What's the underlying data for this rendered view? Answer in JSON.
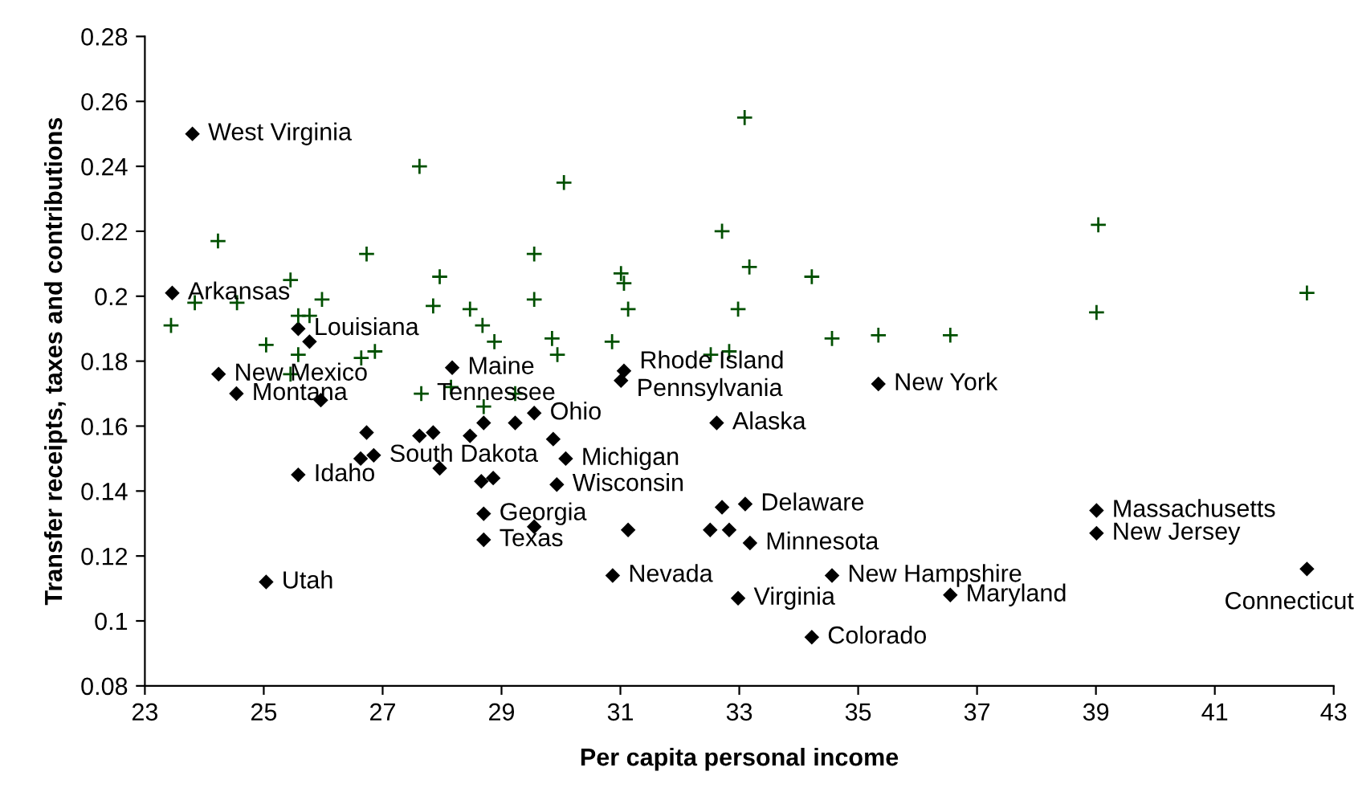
{
  "chart_data": {
    "type": "scatter",
    "xlabel": "Per capita personal income",
    "ylabel": "Transfer receipts, taxes and contributions",
    "xlim": [
      23,
      43
    ],
    "xticks": [
      23,
      25,
      27,
      29,
      31,
      33,
      35,
      37,
      39,
      41,
      43
    ],
    "ylim": [
      0.08,
      0.28
    ],
    "yticks": [
      0.08,
      0.1,
      0.12,
      0.14,
      0.16,
      0.18,
      0.2,
      0.22,
      0.24,
      0.26,
      0.28
    ],
    "grid": false,
    "legend": false,
    "series": [
      {
        "marker": "diamond",
        "color": "#000000",
        "x": [
          23.8,
          23.46,
          25.58,
          25.77,
          24.24,
          24.54,
          25.96,
          28.17,
          26.73,
          27.62,
          27.85,
          28.47,
          28.7,
          29.23,
          26.63,
          26.85,
          27.96,
          25.58,
          25.04,
          28.66,
          28.86,
          28.7,
          28.7,
          29.55,
          29.55,
          29.87,
          30.08,
          29.93,
          31.06,
          31.01,
          35.34,
          32.62,
          31.13,
          32.71,
          33.1,
          32.51,
          32.83,
          33.18,
          30.87,
          34.56,
          32.98,
          34.22,
          36.55,
          39.01,
          39.01,
          42.55
        ],
        "values": [
          0.25,
          0.201,
          0.19,
          0.186,
          0.176,
          0.17,
          0.168,
          0.178,
          0.158,
          0.157,
          0.158,
          0.157,
          0.161,
          0.161,
          0.15,
          0.151,
          0.147,
          0.145,
          0.112,
          0.143,
          0.144,
          0.133,
          0.125,
          0.129,
          0.164,
          0.156,
          0.15,
          0.142,
          0.177,
          0.174,
          0.173,
          0.161,
          0.128,
          0.135,
          0.136,
          0.128,
          0.128,
          0.124,
          0.114,
          0.114,
          0.107,
          0.095,
          0.108,
          0.134,
          0.127,
          0.116
        ]
      },
      {
        "marker": "cross",
        "color": "#005000",
        "x": [
          23.44,
          23.84,
          24.23,
          24.55,
          25.04,
          25.45,
          25.58,
          25.77,
          25.98,
          25.58,
          25.45,
          26.64,
          26.87,
          26.73,
          27.62,
          27.96,
          27.85,
          28.47,
          28.68,
          28.88,
          27.65,
          28.15,
          28.7,
          29.23,
          33.09,
          30.05,
          29.55,
          29.55,
          32.71,
          31.01,
          31.06,
          31.13,
          33.17,
          34.22,
          32.98,
          29.85,
          29.94,
          30.86,
          32.52,
          32.83,
          34.56,
          35.34,
          36.55,
          39.01,
          39.04,
          42.55
        ],
        "values": [
          0.191,
          0.198,
          0.217,
          0.198,
          0.185,
          0.205,
          0.194,
          0.194,
          0.199,
          0.182,
          0.176,
          0.181,
          0.183,
          0.213,
          0.24,
          0.206,
          0.197,
          0.196,
          0.191,
          0.186,
          0.17,
          0.172,
          0.166,
          0.17,
          0.255,
          0.235,
          0.213,
          0.199,
          0.22,
          0.207,
          0.204,
          0.196,
          0.209,
          0.206,
          0.196,
          0.187,
          0.182,
          0.186,
          0.182,
          0.183,
          0.187,
          0.188,
          0.188,
          0.195,
          0.222,
          0.201
        ]
      }
    ],
    "annotations": [
      {
        "text": "West Virginia",
        "x": 23.8,
        "y": 0.25
      },
      {
        "text": "Arkansas",
        "x": 23.46,
        "y": 0.201
      },
      {
        "text": "Louisiana",
        "x": 25.58,
        "y": 0.19
      },
      {
        "text": "New Mexico",
        "x": 24.24,
        "y": 0.176
      },
      {
        "text": "Montana",
        "x": 24.54,
        "y": 0.17
      },
      {
        "text": "Maine",
        "x": 28.17,
        "y": 0.178
      },
      {
        "text": "Tennessee",
        "x": 27.65,
        "y": 0.17
      },
      {
        "text": "Ohio",
        "x": 29.55,
        "y": 0.164
      },
      {
        "text": "South Dakota",
        "x": 26.85,
        "y": 0.151
      },
      {
        "text": "Michigan",
        "x": 30.08,
        "y": 0.15
      },
      {
        "text": "Idaho",
        "x": 25.58,
        "y": 0.145
      },
      {
        "text": "Wisconsin",
        "x": 29.93,
        "y": 0.142
      },
      {
        "text": "Georgia",
        "x": 28.7,
        "y": 0.133
      },
      {
        "text": "Texas",
        "x": 28.7,
        "y": 0.125
      },
      {
        "text": "Utah",
        "x": 25.04,
        "y": 0.112
      },
      {
        "text": "Rhode Island",
        "x": 31.06,
        "y": 0.177
      },
      {
        "text": "Pennsylvania",
        "x": 31.01,
        "y": 0.174
      },
      {
        "text": "New York",
        "x": 35.34,
        "y": 0.173
      },
      {
        "text": "Alaska",
        "x": 32.62,
        "y": 0.161
      },
      {
        "text": "Delaware",
        "x": 33.1,
        "y": 0.136
      },
      {
        "text": "Minnesota",
        "x": 33.18,
        "y": 0.124
      },
      {
        "text": "Nevada",
        "x": 30.87,
        "y": 0.114
      },
      {
        "text": "New Hampshire",
        "x": 34.56,
        "y": 0.114
      },
      {
        "text": "Virginia",
        "x": 32.98,
        "y": 0.107
      },
      {
        "text": "Colorado",
        "x": 34.22,
        "y": 0.095
      },
      {
        "text": "Maryland",
        "x": 36.55,
        "y": 0.108
      },
      {
        "text": "Massachusetts",
        "x": 39.01,
        "y": 0.134
      },
      {
        "text": "New Jersey",
        "x": 39.01,
        "y": 0.127
      },
      {
        "text": "Connecticut",
        "x": 42.55,
        "y": 0.116
      }
    ]
  }
}
